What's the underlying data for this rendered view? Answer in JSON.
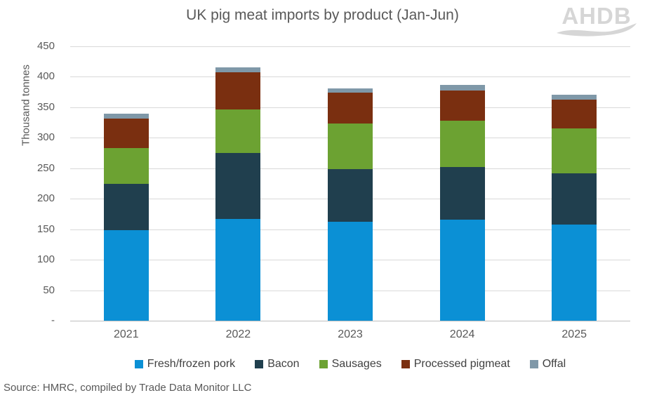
{
  "title": "UK pig meat imports by product (Jan-Jun)",
  "logo_text": "AHDB",
  "source_note": "Source: HMRC, compiled by Trade Data Monitor LLC",
  "colors": {
    "gridline": "#d9d9d9",
    "axis_line": "#bfbfbf",
    "text_gray": "#595959",
    "legend_text": "#404040",
    "logo_gray": "#d6d6d6"
  },
  "chart_data": {
    "type": "bar",
    "stacked": true,
    "title": "UK pig meat imports by product (Jan-Jun)",
    "ylabel": "Thousand tonnes",
    "xlabel": "",
    "categories": [
      "2021",
      "2022",
      "2023",
      "2024",
      "2025"
    ],
    "series": [
      {
        "name": "Fresh/frozen pork",
        "color": "#0b90d5",
        "values": [
          148,
          167,
          162,
          166,
          158
        ]
      },
      {
        "name": "Bacon",
        "color": "#203f4e",
        "values": [
          76,
          108,
          87,
          86,
          84
        ]
      },
      {
        "name": "Sausages",
        "color": "#6ca232",
        "values": [
          59,
          72,
          74,
          76,
          73
        ]
      },
      {
        "name": "Processed pigmeat",
        "color": "#7a2f10",
        "values": [
          48,
          60,
          51,
          50,
          47
        ]
      },
      {
        "name": "Offal",
        "color": "#7f98a8",
        "values": [
          9,
          9,
          7,
          9,
          9
        ]
      }
    ],
    "totals": [
      340,
      416,
      381,
      387,
      371
    ],
    "ylim": [
      0,
      450
    ],
    "ytick_step": 50,
    "zero_tick_label": "-",
    "grid": true,
    "legend_position": "bottom"
  }
}
